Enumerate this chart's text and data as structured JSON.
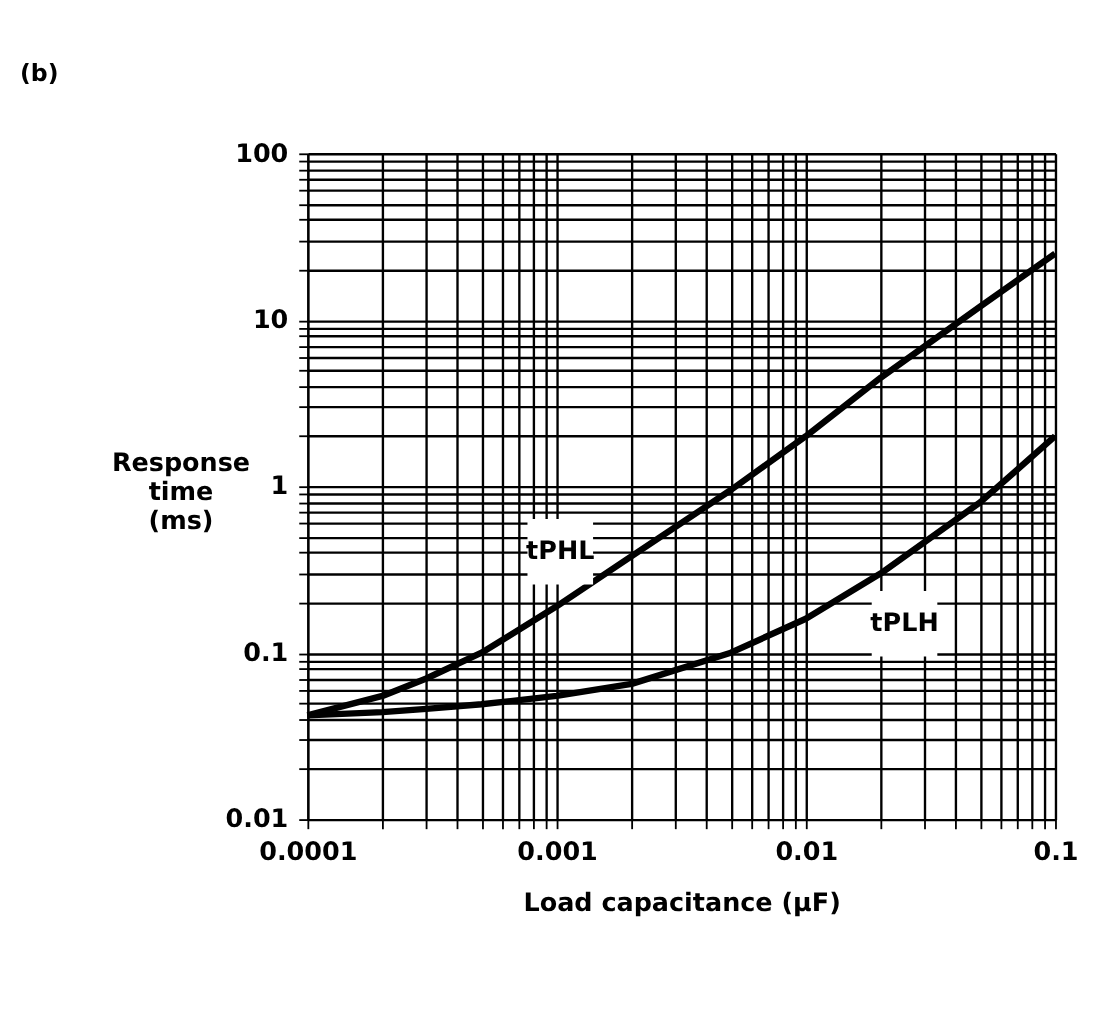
{
  "chart_data": {
    "type": "line",
    "title": "(b)",
    "xlabel": "Load capacitance (μF)",
    "ylabel": "Response\ntime\n(ms)",
    "log": "xy",
    "grid": true,
    "legend": false,
    "line_style": "solid",
    "marker": "none",
    "xlim": [
      0.0001,
      0.1
    ],
    "ylim": [
      0.01,
      100
    ],
    "xticks": [
      0.0001,
      {
        "value": 0.0002,
        "label": null
      },
      {
        "value": 0.0003,
        "label": null
      },
      {
        "value": 0.0004,
        "label": null
      },
      {
        "value": 0.0005,
        "label": null
      },
      {
        "value": 0.0006,
        "label": null
      },
      {
        "value": 0.0007,
        "label": null
      },
      {
        "value": 0.0008,
        "label": null
      },
      {
        "value": 0.0009,
        "label": null
      },
      0.001,
      {
        "value": 0.002,
        "label": null
      },
      {
        "value": 0.003,
        "label": null
      },
      {
        "value": 0.004,
        "label": null
      },
      {
        "value": 0.005,
        "label": null
      },
      {
        "value": 0.006,
        "label": null
      },
      {
        "value": 0.007,
        "label": null
      },
      {
        "value": 0.008,
        "label": null
      },
      {
        "value": 0.009,
        "label": null
      },
      0.01,
      {
        "value": 0.02,
        "label": null
      },
      {
        "value": 0.03,
        "label": null
      },
      {
        "value": 0.04,
        "label": null
      },
      {
        "value": 0.05,
        "label": null
      },
      {
        "value": 0.06,
        "label": null
      },
      {
        "value": 0.07,
        "label": null
      },
      {
        "value": 0.08,
        "label": null
      },
      {
        "value": 0.09,
        "label": null
      },
      0.1
    ],
    "yticks": [
      0.01,
      {
        "value": 0.02,
        "label": null
      },
      {
        "value": 0.03,
        "label": null
      },
      {
        "value": 0.04,
        "label": null
      },
      {
        "value": 0.05,
        "label": null
      },
      {
        "value": 0.06,
        "label": null
      },
      {
        "value": 0.07,
        "label": null
      },
      {
        "value": 0.08,
        "label": null
      },
      {
        "value": 0.09,
        "label": null
      },
      0.1,
      {
        "value": 0.2,
        "label": null
      },
      {
        "value": 0.3,
        "label": null
      },
      {
        "value": 0.4,
        "label": null
      },
      {
        "value": 0.5,
        "label": null
      },
      {
        "value": 0.6,
        "label": null
      },
      {
        "value": 0.7,
        "label": null
      },
      {
        "value": 0.8,
        "label": null
      },
      {
        "value": 0.9,
        "label": null
      },
      1,
      {
        "value": 2,
        "label": null
      },
      {
        "value": 3,
        "label": null
      },
      {
        "value": 4,
        "label": null
      },
      {
        "value": 5,
        "label": null
      },
      {
        "value": 6,
        "label": null
      },
      {
        "value": 7,
        "label": null
      },
      {
        "value": 8,
        "label": null
      },
      {
        "value": 9,
        "label": null
      },
      10,
      {
        "value": 20,
        "label": null
      },
      {
        "value": 30,
        "label": null
      },
      {
        "value": 40,
        "label": null
      },
      {
        "value": 50,
        "label": null
      },
      {
        "value": 60,
        "label": null
      },
      {
        "value": 70,
        "label": null
      },
      {
        "value": 80,
        "label": null
      },
      {
        "value": 90,
        "label": null
      },
      100
    ],
    "x": [
      0.0001,
      0.0002,
      0.0003,
      0.0005,
      0.001,
      0.002,
      0.005,
      0.01,
      0.02,
      0.05,
      0.1
    ],
    "series": [
      {
        "name": "tPHL",
        "color": "#000000",
        "values": [
          0.042,
          0.055,
          0.07,
          0.1,
          0.19,
          0.38,
          0.95,
          2,
          4.5,
          12,
          25
        ]
      },
      {
        "name": "tPLH",
        "color": "#000000",
        "values": [
          0.042,
          0.044,
          0.046,
          0.049,
          0.055,
          0.065,
          0.1,
          0.16,
          0.3,
          0.8,
          2
        ]
      }
    ]
  }
}
